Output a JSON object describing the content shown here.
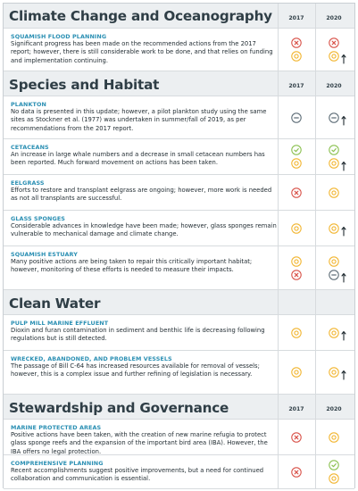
{
  "years": [
    "2017",
    "2020"
  ],
  "colors": {
    "red": "#d9534a",
    "yellow": "#f2b632",
    "green": "#8cc152",
    "grey": "#5f6e78",
    "accent": "#2a8fb3"
  },
  "sections": [
    {
      "title": "Climate Change and Oceanography",
      "rows": [
        {
          "name": "SQUAMISH FLOOD PLANNING",
          "text": "Significant progress has been made on the recommended actions from the 2017 report; however, there is still considerable work to be done, and that relies on funding and implementation continuing.",
          "y2017": [
            "red",
            "yellow"
          ],
          "y2020": [
            "red",
            "yellow"
          ],
          "arrow": true
        }
      ]
    },
    {
      "title": "Species and Habitat",
      "rows": [
        {
          "name": "PLANKTON",
          "text": "No data is presented in this update; however, a pilot plankton study using the same sites as Stockner et al. (1977) was undertaken in summer/fall of 2019, as per recommendations from the 2017 report.",
          "y2017": [
            "grey"
          ],
          "y2020": [
            "grey"
          ],
          "arrow": true
        },
        {
          "name": "CETACEANS",
          "text": "An increase in large whale numbers and a decrease in small cetacean numbers has been reported. Much forward movement on actions has been taken.",
          "y2017": [
            "green",
            "yellow"
          ],
          "y2020": [
            "green",
            "yellow"
          ],
          "arrow": true
        },
        {
          "name": "EELGRASS",
          "text": "Efforts to restore and transplant eelgrass are ongoing; however, more work is needed as not all transplants are successful.",
          "y2017": [
            "red"
          ],
          "y2020": [
            "yellow"
          ],
          "arrow": false
        },
        {
          "name": "GLASS SPONGES",
          "text": "Considerable advances in knowledge have been made; however, glass sponges remain vulnerable to mechanical damage and climate change.",
          "y2017": [
            "yellow"
          ],
          "y2020": [
            "yellow"
          ],
          "arrow": true
        },
        {
          "name": "SQUAMISH ESTUARY",
          "text": "Many positive actions are being taken to repair this critically important habitat; however, monitoring of these efforts is needed to measure their impacts.",
          "y2017": [
            "yellow",
            "red"
          ],
          "y2020": [
            "yellow",
            "grey"
          ],
          "arrow": true
        }
      ]
    },
    {
      "title": "Clean Water",
      "rows": [
        {
          "name": "PULP MILL MARINE EFFLUENT",
          "text": "Dioxin and furan contamination in sediment and benthic life is decreasing following regulations but is still detected.",
          "y2017": [
            "yellow"
          ],
          "y2020": [
            "yellow"
          ],
          "arrow": true
        },
        {
          "name": "WRECKED, ABANDONED, AND PROBLEM VESSELS",
          "text": "The passage of Bill C-64 has increased resources available for removal of vessels; however, this is a complex issue and further refining of legislation is necessary.",
          "y2017": [
            "yellow"
          ],
          "y2020": [
            "yellow"
          ],
          "arrow": true
        }
      ]
    },
    {
      "title": "Stewardship and Governance",
      "rows": [
        {
          "name": "MARINE PROTECTED AREAS",
          "text": "Positive actions have been taken, with the creation of new marine refugia to protect glass sponge reefs and the expansion of the important bird area (IBA). However, the IBA offers no legal protection.",
          "y2017": [
            "red"
          ],
          "y2020": [
            "yellow"
          ],
          "arrow": false
        },
        {
          "name": "COMPREHENSIVE PLANNING",
          "text": "Recent accomplishments suggest positive improvements, but a need for continued collaboration and communication is essential.",
          "y2017": [
            "red"
          ],
          "y2020": [
            "green",
            "yellow"
          ],
          "arrow": false
        }
      ]
    }
  ]
}
